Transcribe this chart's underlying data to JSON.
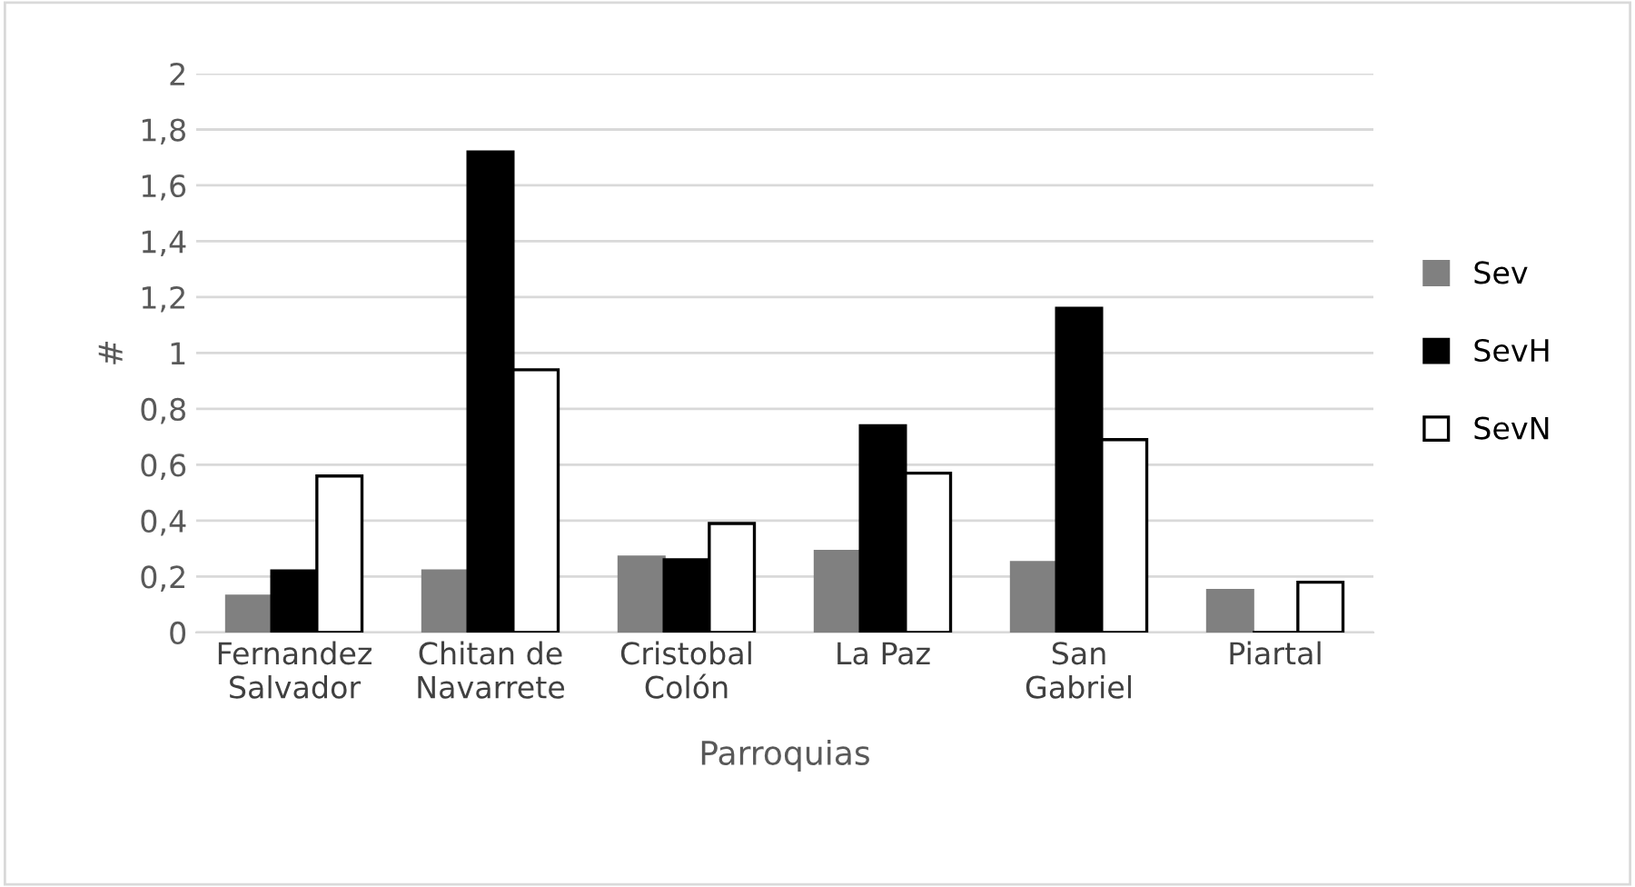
{
  "chart_data": {
    "type": "bar",
    "xlabel": "Parroquias",
    "ylabel": "#",
    "categories": [
      "Fernandez\nSalvador",
      "Chitan de\nNavarrete",
      "Cristobal\nColón",
      "La Paz",
      "San\nGabriel",
      "Piartal"
    ],
    "series": [
      {
        "name": "Sev",
        "color": "#808080",
        "values": [
          0.13,
          0.22,
          0.27,
          0.29,
          0.25,
          0.15
        ]
      },
      {
        "name": "SevH",
        "color": "#000000",
        "values": [
          0.22,
          1.72,
          0.26,
          0.74,
          1.16,
          0
        ]
      },
      {
        "name": "SevN",
        "color": "#ffffff",
        "values": [
          0.56,
          0.94,
          0.39,
          0.57,
          0.69,
          0.18
        ]
      }
    ],
    "ylim": [
      0,
      2
    ],
    "yticks": [
      0,
      {
        "value": 0.2,
        "label": "0,2"
      },
      {
        "value": 0.4,
        "label": "0,4"
      },
      {
        "value": 0.6,
        "label": "0,6"
      },
      {
        "value": 0.8,
        "label": "0,8"
      },
      1,
      {
        "value": 1.2,
        "label": "1,2"
      },
      {
        "value": 1.4,
        "label": "1,4"
      },
      {
        "value": 1.6,
        "label": "1,6"
      },
      {
        "value": 1.8,
        "label": "1,8"
      },
      2
    ],
    "grid": "y",
    "legend": "right"
  }
}
